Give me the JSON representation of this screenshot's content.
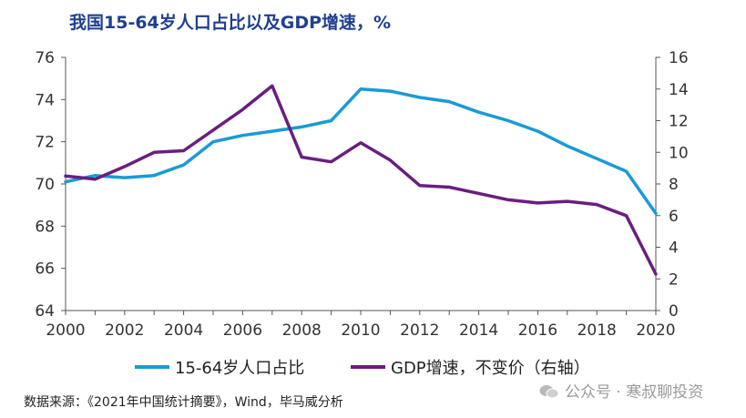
{
  "title": "我国15-64岁人口占比以及GDP增速，%",
  "source": "数据来源：《2021年中国统计摘要》，Wind，毕马威分析",
  "watermark": "公众号 · 寒叔聊投资",
  "colors": {
    "series1": "#1a9ad6",
    "series2": "#6a1e7e",
    "title": "#1f3f8f",
    "axis": "#555555"
  },
  "chart_data": {
    "type": "line",
    "x": [
      2000,
      2001,
      2002,
      2003,
      2004,
      2005,
      2006,
      2007,
      2008,
      2009,
      2010,
      2011,
      2012,
      2013,
      2014,
      2015,
      2016,
      2017,
      2018,
      2019,
      2020
    ],
    "x_ticks": [
      2000,
      2002,
      2004,
      2006,
      2008,
      2010,
      2012,
      2014,
      2016,
      2018,
      2020
    ],
    "left_ylim": [
      64,
      76
    ],
    "left_ticks": [
      64,
      66,
      68,
      70,
      72,
      74,
      76
    ],
    "right_ylim": [
      0,
      16
    ],
    "right_ticks": [
      0,
      2,
      4,
      6,
      8,
      10,
      12,
      14,
      16
    ],
    "grid": false,
    "legend_position": "bottom",
    "series": [
      {
        "name": "15-64岁人口占比",
        "axis": "left",
        "values": [
          70.1,
          70.4,
          70.3,
          70.4,
          70.9,
          72.0,
          72.3,
          72.5,
          72.7,
          73.0,
          74.5,
          74.4,
          74.1,
          73.9,
          73.4,
          73.0,
          72.5,
          71.8,
          71.2,
          70.6,
          68.6
        ]
      },
      {
        "name": "GDP增速，不变价（右轴）",
        "axis": "right",
        "values": [
          8.5,
          8.3,
          9.1,
          10.0,
          10.1,
          11.4,
          12.7,
          14.2,
          9.7,
          9.4,
          10.6,
          9.5,
          7.9,
          7.8,
          7.4,
          7.0,
          6.8,
          6.9,
          6.7,
          6.0,
          2.3
        ]
      }
    ]
  }
}
